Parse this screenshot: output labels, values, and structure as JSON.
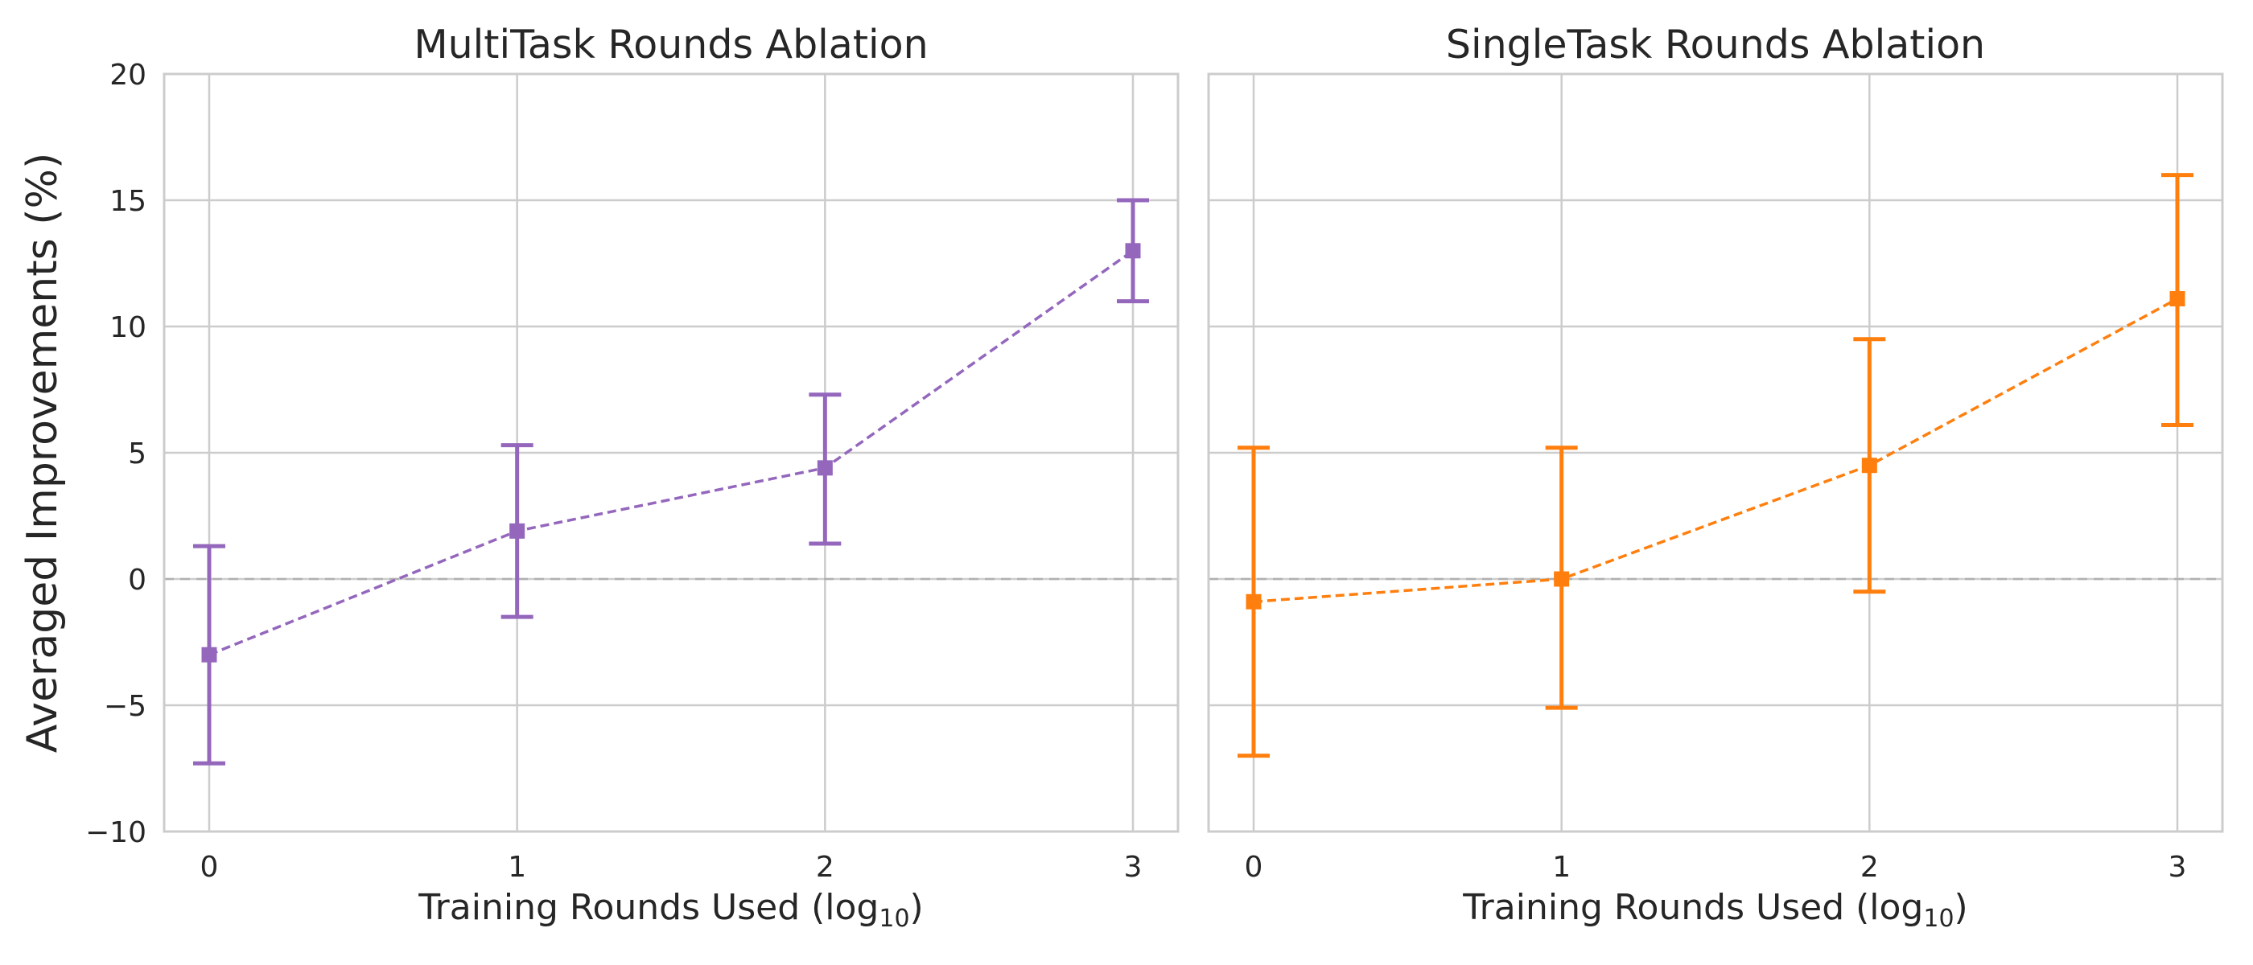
{
  "colors": {
    "multitask": "#9467bd",
    "singletask": "#ff7f0e",
    "grid": "#cccccc",
    "zero_line": "#b0b0b0",
    "spine": "#cccccc",
    "text": "#262626"
  },
  "chart_data": [
    {
      "type": "line",
      "title": "MultiTask Rounds Ablation",
      "xlabel": "Training Rounds Used (log",
      "xlabel_subscript": "10",
      "xlabel_suffix": ")",
      "ylabel": "Averaged Improvements (%)",
      "x": [
        0,
        1,
        2,
        3
      ],
      "xticks": [
        "0",
        "1",
        "2",
        "3"
      ],
      "ylim": [
        -10,
        20
      ],
      "yticks": [
        "−10",
        "−5",
        "0",
        "5",
        "10",
        "15",
        "20"
      ],
      "ytick_values": [
        -10,
        -5,
        0,
        5,
        10,
        15,
        20
      ],
      "grid": true,
      "reference_line_y": 0,
      "series": [
        {
          "color": "#9467bd",
          "linestyle": "dashed",
          "marker": "square",
          "values": [
            -3.0,
            1.9,
            4.4,
            13.0
          ],
          "error_low": [
            -7.3,
            -1.5,
            1.4,
            11.0
          ],
          "error_high": [
            1.3,
            5.3,
            7.3,
            15.0
          ]
        }
      ]
    },
    {
      "type": "line",
      "title": "SingleTask Rounds Ablation",
      "xlabel": "Training Rounds Used (log",
      "xlabel_subscript": "10",
      "xlabel_suffix": ")",
      "x": [
        0,
        1,
        2,
        3
      ],
      "xticks": [
        "0",
        "1",
        "2",
        "3"
      ],
      "ylim": [
        -10,
        20
      ],
      "grid": true,
      "reference_line_y": 0,
      "series": [
        {
          "color": "#ff7f0e",
          "linestyle": "dashed",
          "marker": "square",
          "values": [
            -0.9,
            0.0,
            4.5,
            11.1
          ],
          "error_low": [
            -7.0,
            -5.1,
            -0.5,
            6.1
          ],
          "error_high": [
            5.2,
            5.2,
            9.5,
            16.0
          ]
        }
      ]
    }
  ]
}
